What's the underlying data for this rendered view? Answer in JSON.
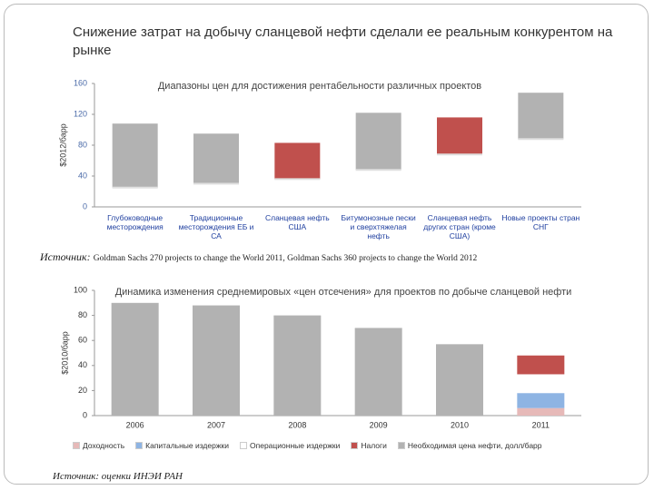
{
  "title": "Снижение затрат на добычу сланцевой нефти сделали ее реальным конкурентом на рынке",
  "source_1": {
    "label": "Источник:",
    "text": "Goldman Sachs 270 projects to change the World 2011, Goldman Sachs 360 projects to change the World 2012"
  },
  "source_2": "Источник: оценки ИНЭИ РАН",
  "chart_data": [
    {
      "type": "range-bar",
      "title": "Диапазоны цен для достижения рентабельности различных проектов",
      "ylabel": "$2012/барр",
      "categories": [
        "Глубоководные месторождения",
        "Традиционные месторождения ЕБ и СА",
        "Сланцевая нефть США",
        "Битумонозные пески и сверхтяжелая нефть",
        "Сланцевая нефть других стран (кроме США)",
        "Новые проекты стран СНГ"
      ],
      "lows": [
        25,
        30,
        36,
        48,
        68,
        88
      ],
      "highs": [
        108,
        95,
        83,
        122,
        116,
        148
      ],
      "colors": [
        "#b2b2b2",
        "#b2b2b2",
        "#c0504d",
        "#b2b2b2",
        "#c0504d",
        "#b2b2b2"
      ],
      "ylim": [
        0,
        160
      ],
      "yticks": [
        0,
        40,
        80,
        120,
        160
      ]
    },
    {
      "type": "stacked-bar",
      "title": "Динамика изменения среднемировых «цен отсечения» для проектов по добыче сланцевой нефти",
      "ylabel": "$2010/барр",
      "categories": [
        "2006",
        "2007",
        "2008",
        "2009",
        "2010",
        "2011"
      ],
      "series": [
        {
          "name": "Доходность",
          "color": "#e6b9b8",
          "values": [
            null,
            null,
            null,
            null,
            null,
            6
          ]
        },
        {
          "name": "Капитальные издержки",
          "color": "#8eb4e3",
          "values": [
            null,
            null,
            null,
            null,
            null,
            12
          ]
        },
        {
          "name": "Операционные издержки",
          "color": "#ffffff",
          "values": [
            null,
            null,
            null,
            null,
            null,
            15
          ]
        },
        {
          "name": "Налоги",
          "color": "#c0504d",
          "values": [
            null,
            null,
            null,
            null,
            null,
            15
          ]
        },
        {
          "name": "Необходимая цена нефти, долл/барр",
          "color": "#b2b2b2",
          "values": [
            90,
            88,
            80,
            70,
            57,
            null
          ]
        }
      ],
      "ylim": [
        0,
        100
      ],
      "yticks": [
        0,
        20,
        40,
        60,
        80,
        100
      ]
    }
  ]
}
